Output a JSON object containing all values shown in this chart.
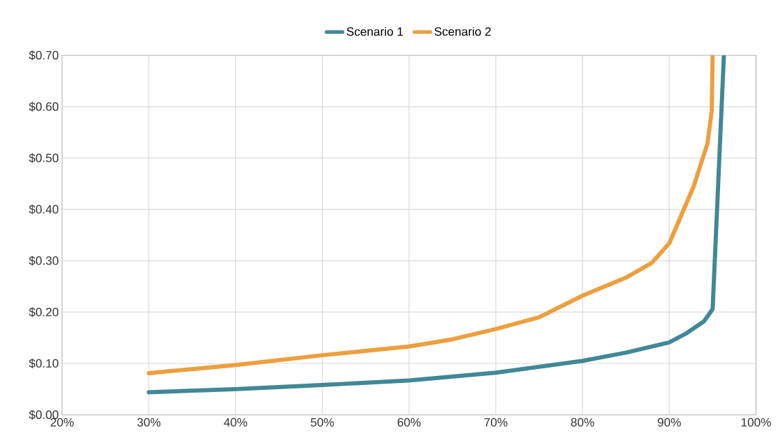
{
  "chart_data": {
    "type": "line",
    "xlim": [
      20,
      100
    ],
    "ylim": [
      0,
      0.7
    ],
    "xticks": [
      {
        "value": 20,
        "label": "20%"
      },
      {
        "value": 30,
        "label": "30%"
      },
      {
        "value": 40,
        "label": "40%"
      },
      {
        "value": 50,
        "label": "50%"
      },
      {
        "value": 60,
        "label": "60%"
      },
      {
        "value": 70,
        "label": "70%"
      },
      {
        "value": 80,
        "label": "80%"
      },
      {
        "value": 90,
        "label": "90%"
      },
      {
        "value": 100,
        "label": "100%"
      }
    ],
    "yticks": [
      {
        "value": 0,
        "label": "$0.00"
      },
      {
        "value": 0.1,
        "label": "$0.10"
      },
      {
        "value": 0.2,
        "label": "$0.20"
      },
      {
        "value": 0.3,
        "label": "$0.30"
      },
      {
        "value": 0.4,
        "label": "$0.40"
      },
      {
        "value": 0.5,
        "label": "$0.50"
      },
      {
        "value": 0.6,
        "label": "$0.60"
      },
      {
        "value": 0.7,
        "label": "$0.70"
      }
    ],
    "grid": true,
    "legend": "top",
    "marker": "none",
    "line_style": "solid",
    "series": [
      {
        "name": "Scenario 1",
        "color": "#418896",
        "x": [
          30,
          40,
          50,
          60,
          70,
          80,
          85,
          90,
          92,
          94,
          95,
          96.3
        ],
        "values": [
          0.044,
          0.05,
          0.058,
          0.067,
          0.082,
          0.105,
          0.121,
          0.141,
          0.159,
          0.182,
          0.206,
          0.7
        ]
      },
      {
        "name": "Scenario 2",
        "color": "#ed9f3e",
        "x": [
          30,
          40,
          50,
          60,
          65,
          70,
          75,
          80,
          85,
          88,
          90,
          91.5,
          92.8,
          94.4,
          94.9,
          95.0
        ],
        "values": [
          0.081,
          0.097,
          0.116,
          0.133,
          0.147,
          0.167,
          0.19,
          0.232,
          0.267,
          0.296,
          0.334,
          0.393,
          0.444,
          0.528,
          0.592,
          0.7
        ]
      }
    ]
  }
}
